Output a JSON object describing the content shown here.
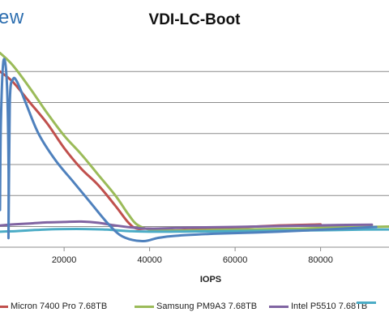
{
  "watermark": {
    "text": "ew",
    "color": "#2e6fb0"
  },
  "chart_data": {
    "type": "line",
    "title": "VDI-LC-Boot",
    "xlabel": "IOPS",
    "ylabel": "",
    "xlim": [
      5000,
      96000
    ],
    "ylim": [
      0,
      100
    ],
    "x_ticks": [
      20000,
      40000,
      60000,
      80000
    ],
    "x_tick_labels": [
      "20000",
      "40000",
      "60000",
      "80000"
    ],
    "y_gridlines": [
      10,
      25,
      40,
      55,
      70,
      85
    ],
    "grid": true,
    "legend_position": "bottom",
    "series": [
      {
        "name": "Micron 7400 Pro 7.68TB",
        "color": "#c0504d",
        "points": [
          [
            5000,
            85
          ],
          [
            8000,
            80
          ],
          [
            12000,
            70
          ],
          [
            16000,
            60
          ],
          [
            20000,
            48
          ],
          [
            24000,
            38
          ],
          [
            28000,
            30
          ],
          [
            32000,
            20
          ],
          [
            35000,
            12
          ],
          [
            37000,
            9
          ],
          [
            40000,
            9
          ],
          [
            45000,
            8
          ],
          [
            60000,
            9.5
          ],
          [
            70000,
            10.5
          ],
          [
            80000,
            11
          ]
        ]
      },
      {
        "name": "Samsung PM9A3 7.68TB",
        "color": "#9bbb59",
        "points": [
          [
            5000,
            94
          ],
          [
            8000,
            88
          ],
          [
            12000,
            77
          ],
          [
            16000,
            65
          ],
          [
            20000,
            54
          ],
          [
            24000,
            45
          ],
          [
            28000,
            35
          ],
          [
            32000,
            25
          ],
          [
            35000,
            16
          ],
          [
            37000,
            11
          ],
          [
            40000,
            8.5
          ],
          [
            45000,
            8
          ],
          [
            60000,
            8.5
          ],
          [
            75000,
            9
          ],
          [
            85000,
            9.5
          ],
          [
            96000,
            10
          ]
        ]
      },
      {
        "name": "Intel P5510 7.68TB",
        "color": "#8064a2",
        "points": [
          [
            5000,
            10.5
          ],
          [
            8000,
            11
          ],
          [
            12000,
            11.5
          ],
          [
            16000,
            12
          ],
          [
            20000,
            12.2
          ],
          [
            24000,
            12.4
          ],
          [
            28000,
            11.8
          ],
          [
            32000,
            10.5
          ],
          [
            36000,
            9.5
          ],
          [
            40000,
            9
          ],
          [
            50000,
            9.5
          ],
          [
            60000,
            9.8
          ],
          [
            70000,
            10.2
          ],
          [
            80000,
            10.6
          ],
          [
            86000,
            10.8
          ],
          [
            92000,
            10.9
          ]
        ]
      },
      {
        "name": "",
        "color": "#4bacc6",
        "points": [
          [
            5000,
            7.5
          ],
          [
            9000,
            7.8
          ],
          [
            12000,
            8.2
          ],
          [
            16000,
            8.6
          ],
          [
            20000,
            8.8
          ],
          [
            25000,
            8.8
          ],
          [
            30000,
            8.5
          ],
          [
            35000,
            7.8
          ],
          [
            40000,
            7.5
          ],
          [
            50000,
            7.6
          ],
          [
            60000,
            7.8
          ],
          [
            70000,
            8.0
          ],
          [
            80000,
            8.2
          ],
          [
            90000,
            8.5
          ],
          [
            96000,
            8.6
          ]
        ]
      },
      {
        "name": "",
        "color": "#4f81bd",
        "points": [
          [
            5000,
            18
          ],
          [
            5200,
            60
          ],
          [
            5800,
            90
          ],
          [
            6600,
            80
          ],
          [
            7000,
            40
          ],
          [
            7000,
            5
          ],
          [
            7300,
            70
          ],
          [
            8000,
            81
          ],
          [
            9000,
            80
          ],
          [
            11000,
            70
          ],
          [
            14000,
            55
          ],
          [
            18000,
            42
          ],
          [
            22000,
            32
          ],
          [
            26000,
            22
          ],
          [
            30000,
            12
          ],
          [
            33000,
            6
          ],
          [
            36000,
            3.5
          ],
          [
            39000,
            3
          ],
          [
            42000,
            4.5
          ],
          [
            46000,
            5.5
          ],
          [
            55000,
            6.5
          ],
          [
            70000,
            7.5
          ],
          [
            85000,
            9
          ],
          [
            93000,
            9.8
          ]
        ]
      }
    ]
  }
}
